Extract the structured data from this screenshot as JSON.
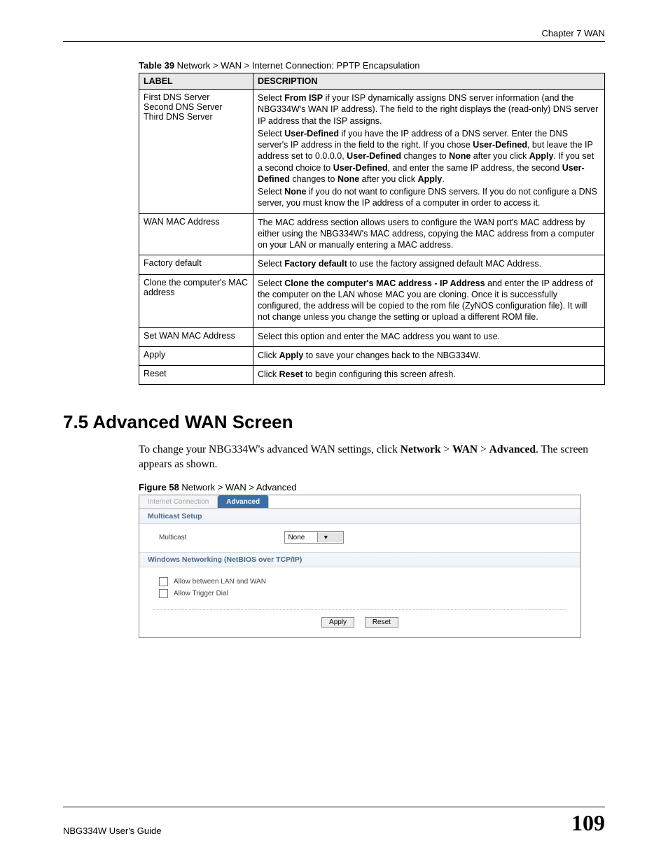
{
  "header": {
    "chapter": "Chapter 7 WAN"
  },
  "table39": {
    "caption_bold": "Table 39",
    "caption_rest": "   Network > WAN > Internet Connection: PPTP Encapsulation",
    "col_label": "LABEL",
    "col_desc": "DESCRIPTION",
    "rows": {
      "r0": {
        "label": "First DNS Server\nSecond DNS Server\nThird DNS Server",
        "p0a": "Select ",
        "p0b": "From ISP",
        "p0c": " if your ISP dynamically assigns DNS server information (and the NBG334W's WAN IP address). The field to the right displays the (read-only) DNS server IP address that the ISP assigns.",
        "p1a": "Select ",
        "p1b": "User-Defined",
        "p1c": " if you have the IP address of a DNS server. Enter the DNS server's IP address in the field to the right. If you chose ",
        "p1d": "User-Defined",
        "p1e": ", but leave the IP address set to 0.0.0.0, ",
        "p1f": "User-Defined",
        "p1g": " changes to ",
        "p1h": "None",
        "p1i": " after you click ",
        "p1j": "Apply",
        "p1k": ". If you set a second choice to ",
        "p1l": "User-Defined",
        "p1m": ", and enter the same IP address, the second ",
        "p1n": "User-Defined",
        "p1o": " changes to ",
        "p1p": "None",
        "p1q": " after you click ",
        "p1r": "Apply",
        "p1s": ".",
        "p2a": "Select ",
        "p2b": "None",
        "p2c": " if you do not want to configure DNS servers. If you do not configure a DNS server, you must know the IP address of a computer in order to access it."
      },
      "r1": {
        "label": "WAN MAC Address",
        "desc": "The MAC address section allows users to configure the WAN port's MAC address by either using the NBG334W's MAC address, copying the MAC address from a computer on your LAN or manually entering a MAC address."
      },
      "r2": {
        "label": "Factory default",
        "a": "Select ",
        "b": "Factory default",
        "c": " to use the factory assigned default MAC Address."
      },
      "r3": {
        "label": "Clone the computer's MAC address",
        "a": "Select ",
        "b": "Clone the computer's MAC address - IP Address",
        "c": " and enter the IP address of the computer on the LAN whose MAC you are cloning. Once it is successfully configured, the address will be copied to the rom file (ZyNOS configuration file). It will not change unless you change the setting or upload a different ROM file."
      },
      "r4": {
        "label": "Set WAN MAC Address",
        "desc": "Select this option and enter the MAC address you want to use."
      },
      "r5": {
        "label": "Apply",
        "a": "Click ",
        "b": "Apply",
        "c": " to save your changes back to the NBG334W."
      },
      "r6": {
        "label": "Reset",
        "a": "Click ",
        "b": "Reset",
        "c": " to begin configuring this screen afresh."
      }
    }
  },
  "section": {
    "heading": "7.5  Advanced WAN Screen",
    "body_a": "To change your NBG334W's advanced WAN settings, click ",
    "body_b": "Network",
    "body_c": " > ",
    "body_d": "WAN",
    "body_e": " > ",
    "body_f": "Advanced",
    "body_g": ". The screen appears as shown."
  },
  "figure58": {
    "caption_bold": "Figure 58",
    "caption_rest": "   Network > WAN > Advanced",
    "tabs": {
      "inactive": "Internet Connection",
      "active": "Advanced"
    },
    "multicast_head": "Multicast Setup",
    "multicast_label": "Multicast",
    "multicast_value": "None",
    "winnet_head": "Windows Networking (NetBIOS over TCP/IP)",
    "chk1": "Allow between LAN and WAN",
    "chk2": "Allow Trigger Dial",
    "apply_btn": "Apply",
    "reset_btn": "Reset"
  },
  "footer": {
    "guide": "NBG334W User's Guide",
    "page": "109"
  },
  "colors": {
    "tab_active_bg": "#3a6ea5",
    "section_head_text": "#4a6a8a"
  }
}
